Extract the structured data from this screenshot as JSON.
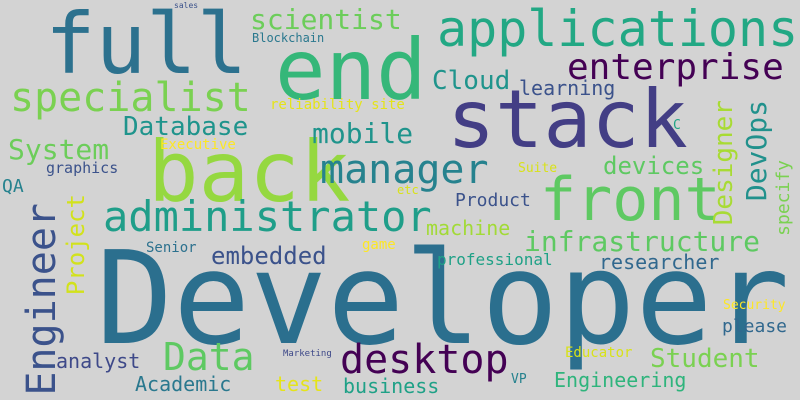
{
  "words": [
    {
      "text": "Developer",
      "color": "#2b6f8e"
    },
    {
      "text": "stack",
      "color": "#433e85"
    },
    {
      "text": "end",
      "color": "#35b779"
    },
    {
      "text": "back",
      "color": "#95d840"
    },
    {
      "text": "full",
      "color": "#2c718e"
    },
    {
      "text": "front",
      "color": "#5ec962"
    },
    {
      "text": "applications",
      "color": "#22a884"
    },
    {
      "text": "administrator",
      "color": "#1f9e89"
    },
    {
      "text": "manager",
      "color": "#26828e"
    },
    {
      "text": "specialist",
      "color": "#7ad151"
    },
    {
      "text": "enterprise",
      "color": "#440154"
    },
    {
      "text": "Engineer",
      "color": "#3b528b"
    },
    {
      "text": "desktop",
      "color": "#440154"
    },
    {
      "text": "Data",
      "color": "#5ec962"
    },
    {
      "text": "infrastructure",
      "color": "#5ec962"
    },
    {
      "text": "scientist",
      "color": "#6ccd5a"
    },
    {
      "text": "mobile",
      "color": "#1f948c"
    },
    {
      "text": "Database",
      "color": "#1f948c"
    },
    {
      "text": "System",
      "color": "#6ccd5a"
    },
    {
      "text": "Cloud",
      "color": "#1f948c"
    },
    {
      "text": "DevOps",
      "color": "#21918c"
    },
    {
      "text": "Designer",
      "color": "#a8db34"
    },
    {
      "text": "devices",
      "color": "#5ec962"
    },
    {
      "text": "embedded",
      "color": "#3b528b"
    },
    {
      "text": "Student",
      "color": "#7ad151"
    },
    {
      "text": "Project",
      "color": "#d2e21b"
    },
    {
      "text": "machine",
      "color": "#a2da37"
    },
    {
      "text": "researcher",
      "color": "#31688e"
    },
    {
      "text": "Engineering",
      "color": "#2fb47c"
    },
    {
      "text": "analyst",
      "color": "#3e4989"
    },
    {
      "text": "Academic",
      "color": "#2a788e"
    },
    {
      "text": "business",
      "color": "#1fa187"
    },
    {
      "text": "learning",
      "color": "#3b528b"
    },
    {
      "text": "Product",
      "color": "#3b528b"
    },
    {
      "text": "professional",
      "color": "#1fa187"
    },
    {
      "text": "please",
      "color": "#31688e"
    },
    {
      "text": "test",
      "color": "#e5e419"
    },
    {
      "text": "specify",
      "color": "#7ad151"
    },
    {
      "text": "QA",
      "color": "#26828e"
    },
    {
      "text": "graphics",
      "color": "#3b528b"
    },
    {
      "text": "Blockchain",
      "color": "#2a788e"
    },
    {
      "text": "Executive",
      "color": "#fde725"
    },
    {
      "text": "Senior",
      "color": "#2c718e"
    },
    {
      "text": "Educator",
      "color": "#d8e219"
    },
    {
      "text": "Security",
      "color": "#fde725"
    },
    {
      "text": "reliability site",
      "color": "#e5e419"
    },
    {
      "text": "Suite",
      "color": "#d8e219"
    },
    {
      "text": "game",
      "color": "#fde725"
    },
    {
      "text": "VP",
      "color": "#26828e"
    },
    {
      "text": "C",
      "color": "#20a486"
    },
    {
      "text": "etc",
      "color": "#d8e219"
    },
    {
      "text": "Marketing",
      "color": "#3e4989"
    },
    {
      "text": "sales",
      "color": "#3b528b"
    }
  ]
}
